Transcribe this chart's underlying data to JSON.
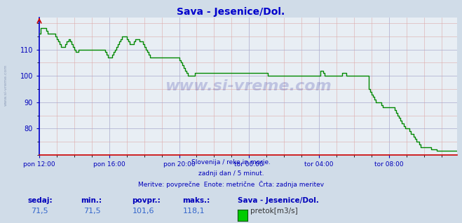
{
  "title": "Sava - Jesenice/Dol.",
  "title_color": "#0000cc",
  "bg_color": "#d0dce8",
  "plot_bg_color": "#e8eef4",
  "grid_major_color": "#aaaacc",
  "grid_minor_color": "#ddaaaa",
  "line_color": "#008800",
  "line_width": 1.0,
  "axis_color": "#0000bb",
  "tick_color": "#0000bb",
  "left_spine_color": "#0000cc",
  "bottom_spine_color": "#cc0000",
  "watermark": "www.si-vreme.com",
  "watermark_side": "www.si-vreme.com",
  "subtitle_lines": [
    "Slovenija / reke in morje.",
    "zadnji dan / 5 minut.",
    "Meritve: povprečne  Enote: metrične  Črta: zadnja meritev"
  ],
  "footer_labels": [
    "sedaj:",
    "min.:",
    "povpr.:",
    "maks.:"
  ],
  "footer_values": [
    "71,5",
    "71,5",
    "101,6",
    "118,1"
  ],
  "footer_series": "Sava - Jesenice/Dol.",
  "footer_legend": "pretok[m3/s]",
  "legend_color": "#00cc00",
  "ylim_min": 70,
  "ylim_max": 120,
  "yticks": [
    80,
    90,
    100,
    110
  ],
  "xtick_labels": [
    "pon 12:00",
    "pon 16:00",
    "pon 20:00",
    "tor 00:00",
    "tor 04:00",
    "tor 08:00"
  ],
  "y_values": [
    116,
    118,
    118,
    118,
    118,
    117,
    116,
    116,
    116,
    116,
    116,
    115,
    114,
    113,
    112,
    111,
    111,
    111,
    112,
    113,
    114,
    113,
    112,
    111,
    110,
    109,
    109,
    110,
    110,
    110,
    110,
    110,
    110,
    110,
    110,
    110,
    110,
    110,
    110,
    110,
    110,
    110,
    110,
    110,
    110,
    109,
    108,
    107,
    107,
    107,
    108,
    109,
    110,
    111,
    112,
    113,
    114,
    115,
    115,
    115,
    114,
    113,
    112,
    112,
    112,
    113,
    114,
    114,
    114,
    113,
    113,
    112,
    111,
    110,
    109,
    108,
    107,
    107,
    107,
    107,
    107,
    107,
    107,
    107,
    107,
    107,
    107,
    107,
    107,
    107,
    107,
    107,
    107,
    107,
    107,
    107,
    106,
    105,
    104,
    103,
    102,
    101,
    100,
    100,
    100,
    100,
    100,
    101,
    101,
    101,
    101,
    101,
    101,
    101,
    101,
    101,
    101,
    101,
    101,
    101,
    101,
    101,
    101,
    101,
    101,
    101,
    101,
    101,
    101,
    101,
    101,
    101,
    101,
    101,
    101,
    101,
    101,
    101,
    101,
    101,
    101,
    101,
    101,
    101,
    101,
    101,
    101,
    101,
    101,
    101,
    101,
    101,
    101,
    101,
    101,
    101,
    101,
    100,
    100,
    100,
    100,
    100,
    100,
    100,
    100,
    100,
    100,
    100,
    100,
    100,
    100,
    100,
    100,
    100,
    100,
    100,
    100,
    100,
    100,
    100,
    100,
    100,
    100,
    100,
    100,
    100,
    100,
    100,
    100,
    100,
    100,
    100,
    100,
    102,
    102,
    101,
    100,
    100,
    100,
    100,
    100,
    100,
    100,
    100,
    100,
    100,
    100,
    100,
    101,
    101,
    101,
    100,
    100,
    100,
    100,
    100,
    100,
    100,
    100,
    100,
    100,
    100,
    100,
    100,
    100,
    100,
    95,
    94,
    93,
    92,
    91,
    90,
    90,
    90,
    90,
    89,
    88,
    88,
    88,
    88,
    88,
    88,
    88,
    88,
    87,
    86,
    85,
    84,
    83,
    82,
    81,
    80,
    80,
    80,
    79,
    78,
    78,
    77,
    76,
    75,
    75,
    74,
    73,
    73,
    73,
    73,
    73,
    73,
    73,
    72,
    72,
    72,
    72,
    71.5,
    71.5,
    71.5,
    71.5,
    71.5,
    71.5,
    71.5,
    71.5,
    71.5,
    71.5,
    71.5,
    71.5,
    71.5,
    71.5,
    71.5
  ]
}
